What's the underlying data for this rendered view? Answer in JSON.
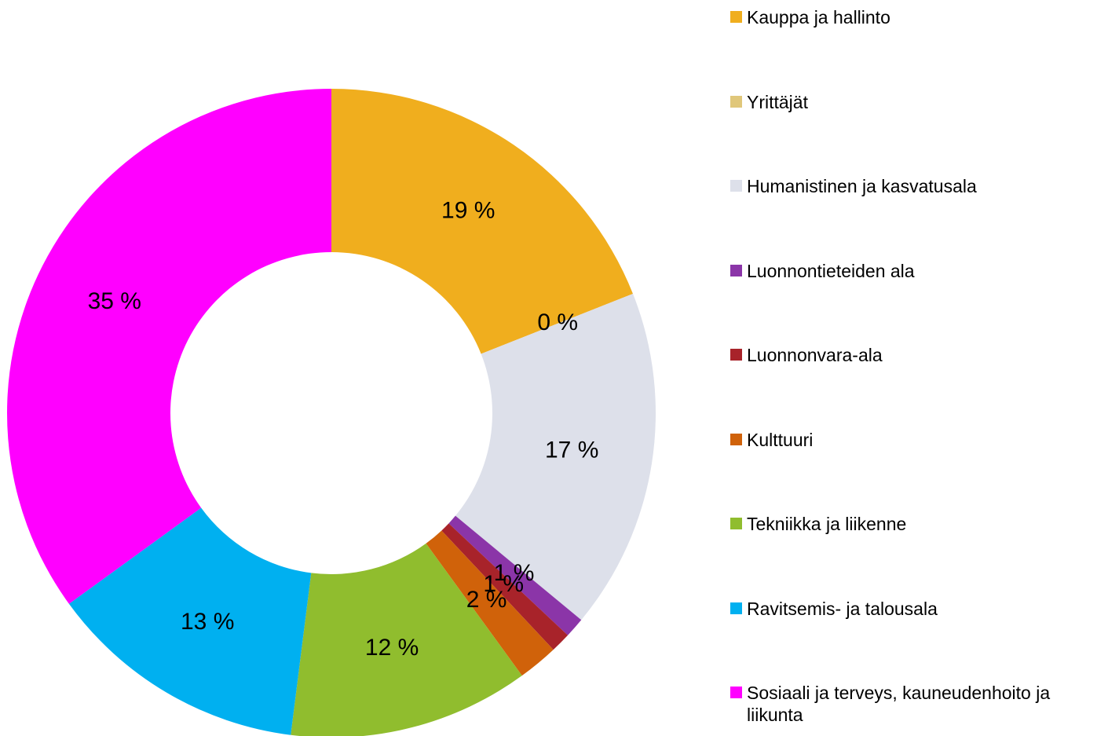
{
  "chart_data": {
    "type": "donut",
    "categories": [
      "Kauppa ja hallinto",
      "Yrittäjät",
      "Humanistinen ja kasvatusala",
      "Luonnontieteiden ala",
      "Luonnonvara-ala",
      "Kulttuuri",
      "Tekniikka ja liikenne",
      "Ravitsemis- ja talousala",
      "Sosiaali ja terveys, kauneudenhoito ja liikunta"
    ],
    "values": [
      19,
      0,
      17,
      1,
      1,
      2,
      12,
      13,
      35
    ],
    "value_labels": [
      "19 %",
      "0 %",
      "17 %",
      "1 %",
      "1 %",
      "2 %",
      "12 %",
      "13 %",
      "35 %"
    ],
    "colors": [
      "#f0ae1e",
      "#e0c77a",
      "#dde0ea",
      "#8b35a8",
      "#a8232a",
      "#d0620a",
      "#90bd2e",
      "#00b0f0",
      "#ff00ff"
    ],
    "legend": "right"
  }
}
